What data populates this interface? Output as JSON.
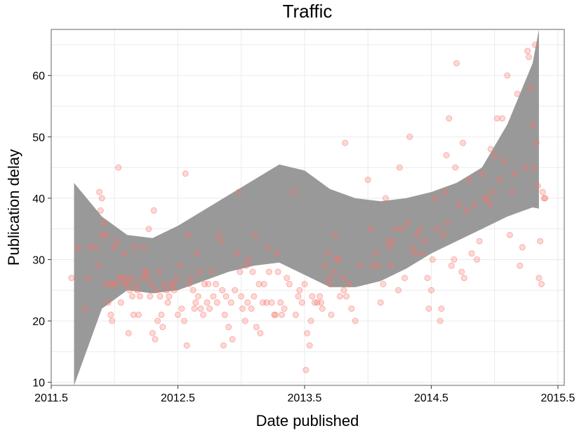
{
  "chart_data": {
    "type": "scatter",
    "title": "Traffic",
    "xlabel": "Date published",
    "ylabel": "Publication delay",
    "xlim": [
      2011.5,
      2015.55
    ],
    "ylim": [
      9.5,
      67.5
    ],
    "x_ticks": [
      2011.5,
      2012.5,
      2013.5,
      2014.5,
      2015.5
    ],
    "x_tick_labels": [
      "2011.5",
      "2012.5",
      "2013.5",
      "2014.5",
      "2015.5"
    ],
    "y_ticks": [
      10,
      20,
      30,
      40,
      50,
      60
    ],
    "y_tick_labels": [
      "10",
      "20",
      "30",
      "40",
      "50",
      "60"
    ],
    "grid": true,
    "legend": "none",
    "point_color": "#f8766d",
    "band_color": "#999999",
    "smooth_band": {
      "x": [
        2011.68,
        2011.9,
        2012.1,
        2012.3,
        2012.5,
        2012.7,
        2012.9,
        2013.1,
        2013.3,
        2013.5,
        2013.7,
        2013.9,
        2014.1,
        2014.3,
        2014.5,
        2014.7,
        2014.9,
        2015.1,
        2015.3,
        2015.35
      ],
      "upper": [
        42.5,
        37.0,
        34.0,
        33.5,
        35.5,
        38.0,
        40.5,
        43.0,
        45.5,
        44.5,
        41.5,
        40.0,
        39.5,
        40.0,
        41.0,
        42.5,
        45.0,
        52.0,
        62.0,
        67.5
      ],
      "lower": [
        7.0,
        22.0,
        25.0,
        24.5,
        25.0,
        26.5,
        28.0,
        29.0,
        29.5,
        27.5,
        25.5,
        25.5,
        26.5,
        28.5,
        31.0,
        33.0,
        35.0,
        37.0,
        38.5,
        38.3
      ]
    },
    "points": [
      [
        2011.66,
        27
      ],
      [
        2011.71,
        32
      ],
      [
        2011.77,
        22
      ],
      [
        2011.79,
        27
      ],
      [
        2011.81,
        32
      ],
      [
        2011.85,
        32
      ],
      [
        2011.87,
        29
      ],
      [
        2011.88,
        41
      ],
      [
        2011.89,
        38
      ],
      [
        2011.9,
        34
      ],
      [
        2011.9,
        40
      ],
      [
        2011.92,
        36
      ],
      [
        2011.93,
        26
      ],
      [
        2011.93,
        34
      ],
      [
        2011.95,
        23
      ],
      [
        2011.96,
        26
      ],
      [
        2011.97,
        21
      ],
      [
        2011.98,
        20
      ],
      [
        2011.99,
        26
      ],
      [
        2012.0,
        32
      ],
      [
        2012.01,
        26
      ],
      [
        2012.02,
        33
      ],
      [
        2012.03,
        45
      ],
      [
        2012.04,
        27
      ],
      [
        2012.05,
        23
      ],
      [
        2012.06,
        27
      ],
      [
        2012.08,
        26
      ],
      [
        2012.08,
        31
      ],
      [
        2012.09,
        27
      ],
      [
        2012.1,
        26
      ],
      [
        2012.11,
        18
      ],
      [
        2012.12,
        25
      ],
      [
        2012.13,
        27
      ],
      [
        2012.14,
        24
      ],
      [
        2012.15,
        21
      ],
      [
        2012.16,
        32
      ],
      [
        2012.17,
        26
      ],
      [
        2012.18,
        25
      ],
      [
        2012.19,
        21
      ],
      [
        2012.2,
        24
      ],
      [
        2012.22,
        27
      ],
      [
        2012.23,
        32
      ],
      [
        2012.24,
        28
      ],
      [
        2012.25,
        28
      ],
      [
        2012.26,
        27
      ],
      [
        2012.27,
        35
      ],
      [
        2012.28,
        24
      ],
      [
        2012.29,
        26
      ],
      [
        2012.3,
        18
      ],
      [
        2012.31,
        38
      ],
      [
        2012.32,
        17
      ],
      [
        2012.33,
        25
      ],
      [
        2012.34,
        20
      ],
      [
        2012.35,
        28
      ],
      [
        2012.36,
        24
      ],
      [
        2012.37,
        21
      ],
      [
        2012.38,
        19
      ],
      [
        2012.39,
        26
      ],
      [
        2012.41,
        25
      ],
      [
        2012.42,
        23
      ],
      [
        2012.43,
        24
      ],
      [
        2012.45,
        26
      ],
      [
        2012.46,
        26
      ],
      [
        2012.47,
        25
      ],
      [
        2012.49,
        27
      ],
      [
        2012.5,
        21
      ],
      [
        2012.52,
        29
      ],
      [
        2012.53,
        22
      ],
      [
        2012.55,
        20
      ],
      [
        2012.56,
        44
      ],
      [
        2012.57,
        16
      ],
      [
        2012.58,
        34
      ],
      [
        2012.59,
        26
      ],
      [
        2012.6,
        27
      ],
      [
        2012.62,
        25
      ],
      [
        2012.63,
        22
      ],
      [
        2012.64,
        23
      ],
      [
        2012.65,
        31
      ],
      [
        2012.66,
        24
      ],
      [
        2012.67,
        28
      ],
      [
        2012.68,
        22
      ],
      [
        2012.7,
        21
      ],
      [
        2012.71,
        26
      ],
      [
        2012.73,
        23
      ],
      [
        2012.74,
        26
      ],
      [
        2012.75,
        22
      ],
      [
        2012.77,
        28
      ],
      [
        2012.78,
        24
      ],
      [
        2012.8,
        26
      ],
      [
        2012.81,
        23
      ],
      [
        2012.82,
        34
      ],
      [
        2012.84,
        33
      ],
      [
        2012.85,
        25
      ],
      [
        2012.86,
        16
      ],
      [
        2012.87,
        21
      ],
      [
        2012.88,
        24
      ],
      [
        2012.9,
        19
      ],
      [
        2012.92,
        23
      ],
      [
        2012.93,
        17
      ],
      [
        2012.95,
        25
      ],
      [
        2012.97,
        31
      ],
      [
        2012.98,
        41
      ],
      [
        2012.99,
        28
      ],
      [
        2013.0,
        24
      ],
      [
        2013.01,
        22
      ],
      [
        2013.03,
        20
      ],
      [
        2013.04,
        29
      ],
      [
        2013.05,
        23
      ],
      [
        2013.06,
        30
      ],
      [
        2013.08,
        22
      ],
      [
        2013.09,
        28
      ],
      [
        2013.1,
        24
      ],
      [
        2013.11,
        34
      ],
      [
        2013.12,
        19
      ],
      [
        2013.14,
        26
      ],
      [
        2013.15,
        18
      ],
      [
        2013.17,
        23
      ],
      [
        2013.18,
        26
      ],
      [
        2013.2,
        23
      ],
      [
        2013.21,
        32
      ],
      [
        2013.22,
        28
      ],
      [
        2013.24,
        23
      ],
      [
        2013.26,
        21
      ],
      [
        2013.27,
        21
      ],
      [
        2013.28,
        31
      ],
      [
        2013.29,
        28
      ],
      [
        2013.31,
        23
      ],
      [
        2013.32,
        21
      ],
      [
        2013.34,
        22
      ],
      [
        2013.36,
        27
      ],
      [
        2013.38,
        26
      ],
      [
        2013.41,
        41
      ],
      [
        2013.43,
        21
      ],
      [
        2013.45,
        24
      ],
      [
        2013.46,
        25
      ],
      [
        2013.48,
        23
      ],
      [
        2013.5,
        26
      ],
      [
        2013.51,
        12
      ],
      [
        2013.52,
        18
      ],
      [
        2013.54,
        16
      ],
      [
        2013.55,
        20
      ],
      [
        2013.56,
        24
      ],
      [
        2013.58,
        23
      ],
      [
        2013.6,
        23
      ],
      [
        2013.62,
        24
      ],
      [
        2013.63,
        23
      ],
      [
        2013.64,
        22
      ],
      [
        2013.66,
        29
      ],
      [
        2013.68,
        31
      ],
      [
        2013.69,
        27
      ],
      [
        2013.7,
        26
      ],
      [
        2013.71,
        21
      ],
      [
        2013.73,
        28
      ],
      [
        2013.74,
        34
      ],
      [
        2013.75,
        30
      ],
      [
        2013.77,
        30
      ],
      [
        2013.78,
        24
      ],
      [
        2013.8,
        27
      ],
      [
        2013.81,
        25
      ],
      [
        2013.82,
        49
      ],
      [
        2013.83,
        24
      ],
      [
        2013.85,
        26
      ],
      [
        2013.87,
        22
      ],
      [
        2013.9,
        20
      ],
      [
        2013.94,
        29
      ],
      [
        2014.0,
        43
      ],
      [
        2014.02,
        35
      ],
      [
        2014.04,
        29
      ],
      [
        2014.06,
        31
      ],
      [
        2014.08,
        29
      ],
      [
        2014.1,
        23
      ],
      [
        2014.12,
        26
      ],
      [
        2014.14,
        40
      ],
      [
        2014.16,
        33
      ],
      [
        2014.17,
        32
      ],
      [
        2014.18,
        29
      ],
      [
        2014.2,
        33
      ],
      [
        2014.22,
        35
      ],
      [
        2014.24,
        25
      ],
      [
        2014.25,
        45
      ],
      [
        2014.27,
        35
      ],
      [
        2014.29,
        27
      ],
      [
        2014.31,
        36
      ],
      [
        2014.33,
        50
      ],
      [
        2014.35,
        32
      ],
      [
        2014.37,
        31
      ],
      [
        2014.39,
        34
      ],
      [
        2014.41,
        35
      ],
      [
        2014.43,
        31
      ],
      [
        2014.45,
        33
      ],
      [
        2014.47,
        27
      ],
      [
        2014.48,
        22
      ],
      [
        2014.5,
        25
      ],
      [
        2014.51,
        30
      ],
      [
        2014.53,
        40
      ],
      [
        2014.55,
        35
      ],
      [
        2014.57,
        20
      ],
      [
        2014.58,
        22
      ],
      [
        2014.6,
        34
      ],
      [
        2014.61,
        41
      ],
      [
        2014.62,
        47
      ],
      [
        2014.63,
        36
      ],
      [
        2014.64,
        53
      ],
      [
        2014.66,
        29
      ],
      [
        2014.68,
        30
      ],
      [
        2014.69,
        45
      ],
      [
        2014.7,
        62
      ],
      [
        2014.72,
        39
      ],
      [
        2014.74,
        28
      ],
      [
        2014.75,
        49
      ],
      [
        2014.76,
        27
      ],
      [
        2014.78,
        38
      ],
      [
        2014.8,
        43
      ],
      [
        2014.82,
        31
      ],
      [
        2014.84,
        39
      ],
      [
        2014.86,
        30
      ],
      [
        2014.88,
        33
      ],
      [
        2014.9,
        44
      ],
      [
        2014.92,
        40
      ],
      [
        2014.94,
        40
      ],
      [
        2014.96,
        39
      ],
      [
        2014.97,
        48
      ],
      [
        2014.98,
        41
      ],
      [
        2015.0,
        47
      ],
      [
        2015.02,
        53
      ],
      [
        2015.04,
        43
      ],
      [
        2015.06,
        53
      ],
      [
        2015.08,
        46
      ],
      [
        2015.1,
        60
      ],
      [
        2015.12,
        34
      ],
      [
        2015.14,
        41
      ],
      [
        2015.16,
        44
      ],
      [
        2015.18,
        57
      ],
      [
        2015.2,
        29
      ],
      [
        2015.22,
        32
      ],
      [
        2015.24,
        45
      ],
      [
        2015.26,
        64
      ],
      [
        2015.27,
        63
      ],
      [
        2015.28,
        58
      ],
      [
        2015.3,
        52
      ],
      [
        2015.31,
        45
      ],
      [
        2015.32,
        65
      ],
      [
        2015.33,
        49
      ],
      [
        2015.34,
        42
      ],
      [
        2015.35,
        27
      ],
      [
        2015.36,
        33
      ],
      [
        2015.37,
        26
      ],
      [
        2015.38,
        41
      ],
      [
        2015.39,
        40
      ],
      [
        2015.4,
        40
      ]
    ]
  }
}
